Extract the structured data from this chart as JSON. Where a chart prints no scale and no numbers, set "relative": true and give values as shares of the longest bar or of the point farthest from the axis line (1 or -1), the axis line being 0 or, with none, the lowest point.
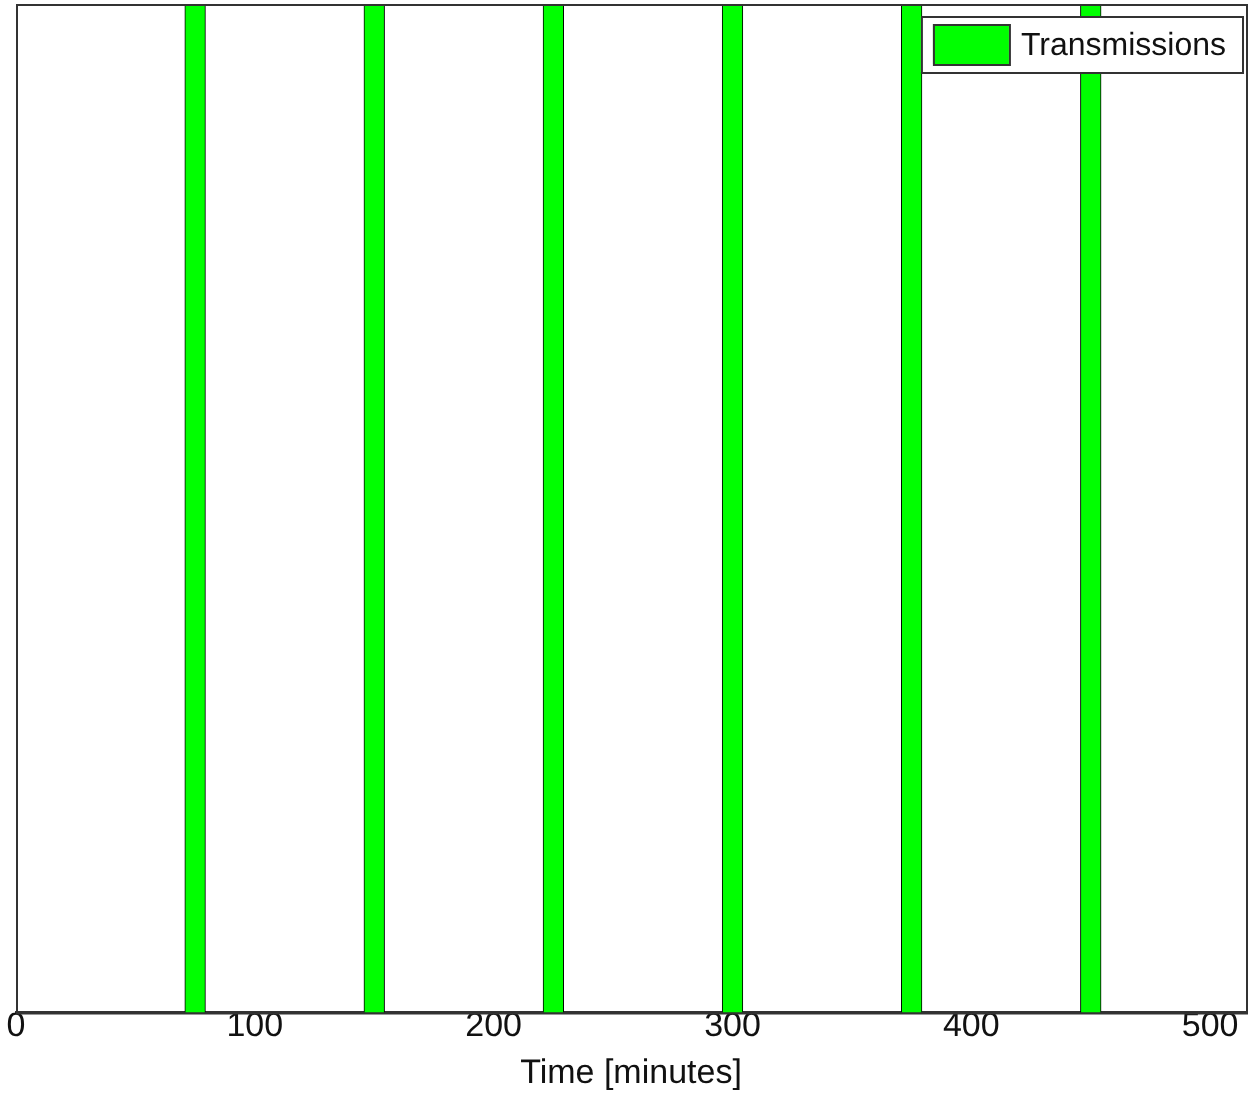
{
  "chart_data": {
    "type": "bar",
    "xlabel": "Time [minutes]",
    "x": [
      75,
      150,
      225,
      300,
      375,
      450
    ],
    "relative": true,
    "series": [
      {
        "name": "Transmissions",
        "color": "#00ff00",
        "values": [
          1,
          1,
          1,
          1,
          1,
          1
        ]
      }
    ],
    "xlim": [
      0,
      515
    ],
    "xticks": [
      0,
      100,
      200,
      300,
      400,
      500
    ],
    "legend": "top right",
    "grid": false
  }
}
